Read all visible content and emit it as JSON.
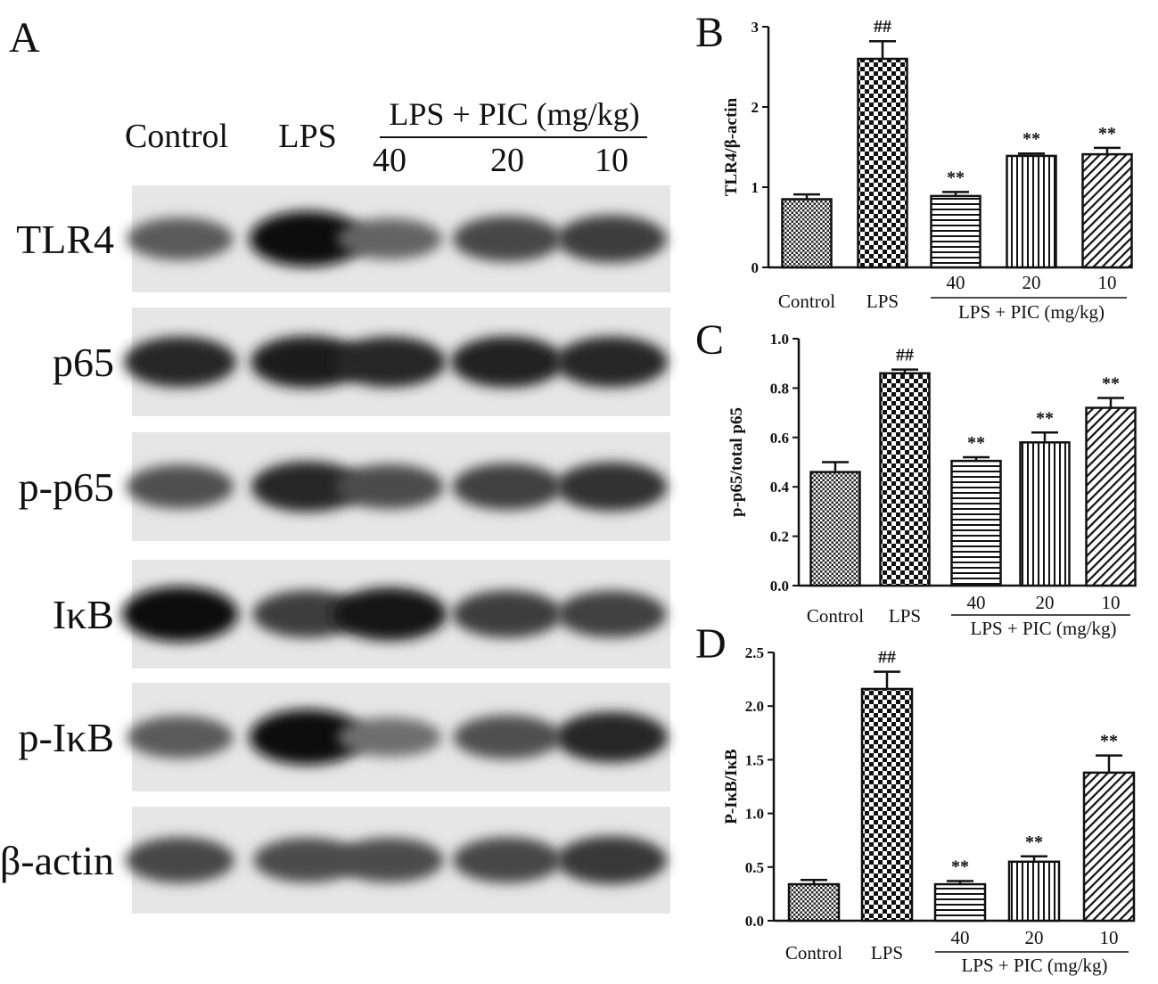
{
  "panel_letters": [
    "A",
    "B",
    "C",
    "D"
  ],
  "blot": {
    "lanes": [
      "Control",
      "LPS",
      "40",
      "20",
      "10"
    ],
    "group_header": "LPS + PIC (mg/kg)",
    "rows": [
      {
        "label": "TLR4",
        "intensity": [
          0.55,
          0.95,
          0.5,
          0.65,
          0.7
        ]
      },
      {
        "label": "p65",
        "intensity": [
          0.8,
          0.85,
          0.8,
          0.82,
          0.8
        ]
      },
      {
        "label": "p-p65",
        "intensity": [
          0.6,
          0.8,
          0.62,
          0.68,
          0.75
        ]
      },
      {
        "label": "IκB",
        "intensity": [
          0.95,
          0.7,
          0.88,
          0.7,
          0.68
        ]
      },
      {
        "label": "p-IκB",
        "intensity": [
          0.55,
          0.95,
          0.45,
          0.6,
          0.8
        ]
      },
      {
        "label": "β-actin",
        "intensity": [
          0.65,
          0.62,
          0.62,
          0.65,
          0.72
        ]
      }
    ]
  },
  "chart_data": [
    {
      "type": "bar",
      "panel": "B",
      "categories": [
        "Control",
        "LPS",
        "40",
        "20",
        "10"
      ],
      "group_label": "LPS + PIC (mg/kg)",
      "values": [
        0.85,
        2.6,
        0.89,
        1.39,
        1.41
      ],
      "errors": [
        0.06,
        0.22,
        0.05,
        0.03,
        0.08
      ],
      "significance": [
        "",
        "##",
        "**",
        "**",
        "**"
      ],
      "ylabel": "TLR4/β-actin",
      "ylim": [
        0,
        3
      ],
      "yticks": [
        0,
        1,
        2,
        3
      ],
      "ytick_labels": [
        "0",
        "1",
        "2",
        "3"
      ],
      "grid": false
    },
    {
      "type": "bar",
      "panel": "C",
      "categories": [
        "Control",
        "LPS",
        "40",
        "20",
        "10"
      ],
      "group_label": "LPS + PIC (mg/kg)",
      "values": [
        0.46,
        0.86,
        0.505,
        0.58,
        0.72
      ],
      "errors": [
        0.04,
        0.015,
        0.015,
        0.04,
        0.04
      ],
      "significance": [
        "",
        "##",
        "**",
        "**",
        "**"
      ],
      "ylabel": "p-p65/total p65",
      "ylim": [
        0,
        1.0
      ],
      "yticks": [
        0,
        0.2,
        0.4,
        0.6,
        0.8,
        1.0
      ],
      "ytick_labels": [
        "0.0",
        "0.2",
        "0.4",
        "0.6",
        "0.8",
        "1.0"
      ],
      "grid": false
    },
    {
      "type": "bar",
      "panel": "D",
      "categories": [
        "Control",
        "LPS",
        "40",
        "20",
        "10"
      ],
      "group_label": "LPS + PIC (mg/kg)",
      "values": [
        0.34,
        2.16,
        0.34,
        0.55,
        1.38
      ],
      "errors": [
        0.04,
        0.16,
        0.03,
        0.05,
        0.16
      ],
      "significance": [
        "",
        "##",
        "**",
        "**",
        "**"
      ],
      "ylabel": "P-IκB/IκB",
      "ylim": [
        0,
        2.5
      ],
      "yticks": [
        0,
        0.5,
        1.0,
        1.5,
        2.0,
        2.5
      ],
      "ytick_labels": [
        "0.0",
        "0.5",
        "1.0",
        "1.5",
        "2.0",
        "2.5"
      ],
      "grid": false
    }
  ]
}
